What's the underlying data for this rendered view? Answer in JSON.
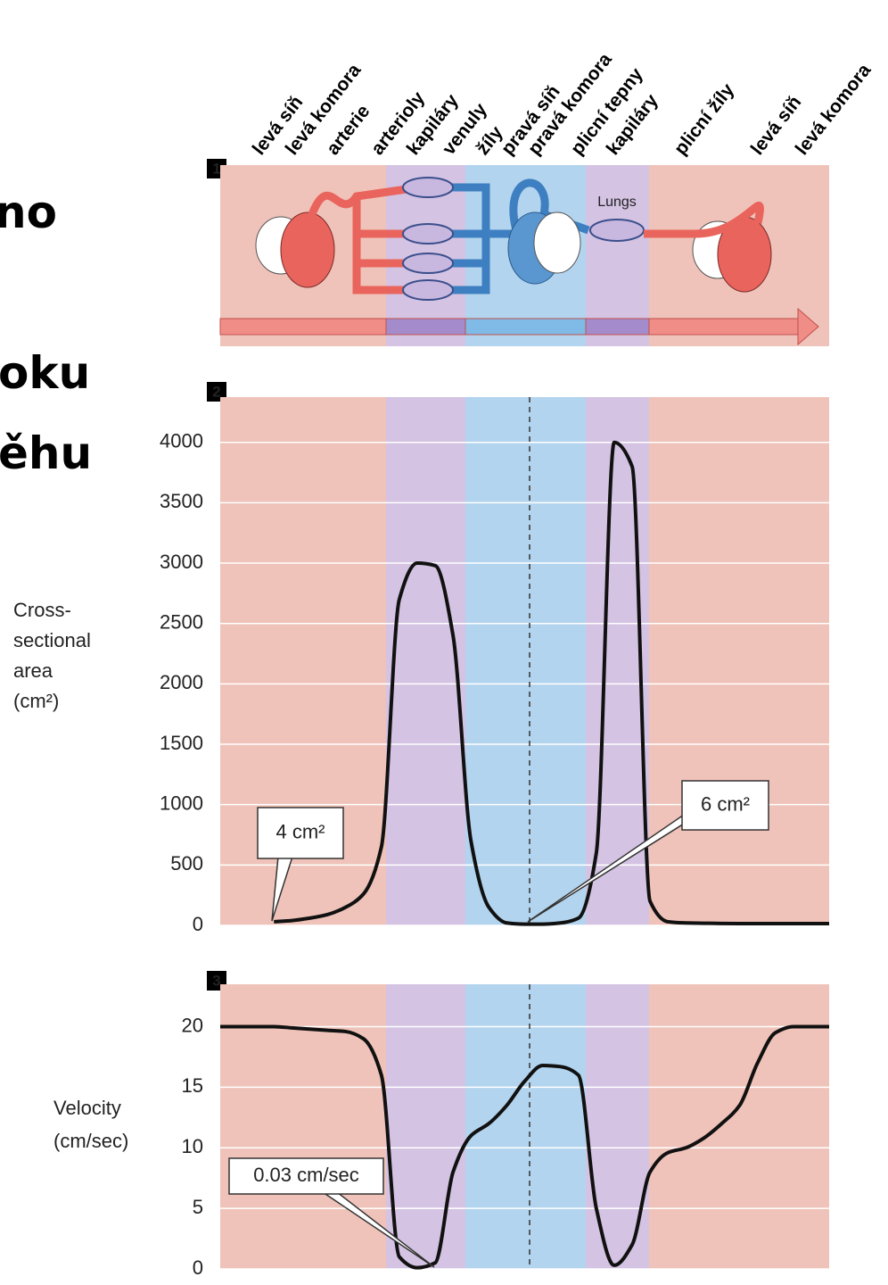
{
  "text_fragments": [
    "no",
    "oku",
    "ěhu"
  ],
  "region_labels": [
    "levá síň",
    "levá komora",
    "arterie",
    "arterioly",
    "kapiláry",
    "venuly",
    "žíly",
    "pravá síň",
    "pravá komora",
    "plicní tepny",
    "kapiláry",
    "plicní žíly",
    "levá síň",
    "levá komora"
  ],
  "diagram": {
    "panel": "1",
    "label": "Lungs"
  },
  "chart_data": [
    {
      "type": "line",
      "panel": "2",
      "ylabel": [
        "Cross-",
        "sectional",
        "area",
        "(cm²)"
      ],
      "values": [
        null,
        null,
        null,
        30,
        40,
        60,
        90,
        150,
        260,
        650,
        2700,
        3000,
        2980,
        2400,
        700,
        150,
        20,
        10,
        10,
        20,
        60,
        600,
        4000,
        3800,
        200,
        30,
        20,
        18,
        16,
        15,
        15,
        15,
        15,
        15,
        15
      ],
      "color": "#111111",
      "ylim": [
        0,
        4375
      ],
      "yticks": [
        0,
        500,
        1000,
        1500,
        2000,
        2500,
        3000,
        3500,
        4000
      ],
      "grid": true,
      "annotations": [
        "4 cm²",
        "6 cm²"
      ]
    },
    {
      "type": "line",
      "panel": "3",
      "ylabel": [
        "Velocity",
        "(cm/sec)"
      ],
      "values": [
        20,
        20,
        20,
        20,
        19.9,
        19.8,
        19.7,
        19.6,
        19,
        16,
        1,
        0.1,
        0.5,
        8,
        11,
        12,
        13.5,
        15.5,
        16.8,
        16.7,
        16,
        5,
        0.3,
        2,
        8,
        9.6,
        10,
        10.8,
        12,
        13.5,
        17,
        19.5,
        20,
        20,
        20
      ],
      "color": "#111111",
      "ylim": [
        0,
        23.5
      ],
      "yticks": [
        0,
        5,
        10,
        15,
        20
      ],
      "grid": true,
      "annotations": [
        "0.03 cm/sec"
      ]
    }
  ]
}
